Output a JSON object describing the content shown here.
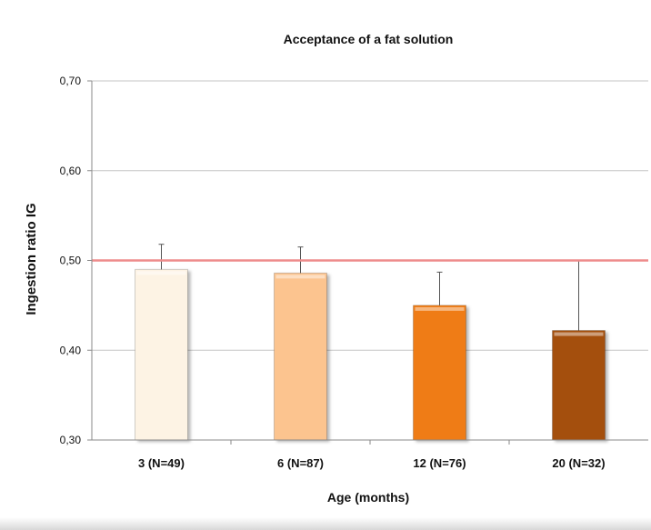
{
  "chart_data": {
    "type": "bar",
    "title": "Acceptance of a fat solution",
    "xlabel": "Age (months)",
    "ylabel": "Ingestion ratio IG",
    "categories": [
      "3 (N=49)",
      "6 (N=87)",
      "12 (N=76)",
      "20 (N=32)"
    ],
    "values": [
      0.49,
      0.486,
      0.45,
      0.422
    ],
    "error_upper": [
      0.028,
      0.029,
      0.037,
      0.078
    ],
    "ylim": [
      0.3,
      0.7
    ],
    "yticks": [
      "0,30",
      "0,40",
      "0,50",
      "0,60",
      "0,70"
    ],
    "reference_line": 0.5,
    "grid": true,
    "legend": "none",
    "colors": {
      "bars": [
        "#fdf3e4",
        "#fcc48f",
        "#ef7b14",
        "#a4500f"
      ],
      "reference_line": "#ee8c8c",
      "grid": "#c6c6c6",
      "axis": "#8a8a8a"
    }
  }
}
